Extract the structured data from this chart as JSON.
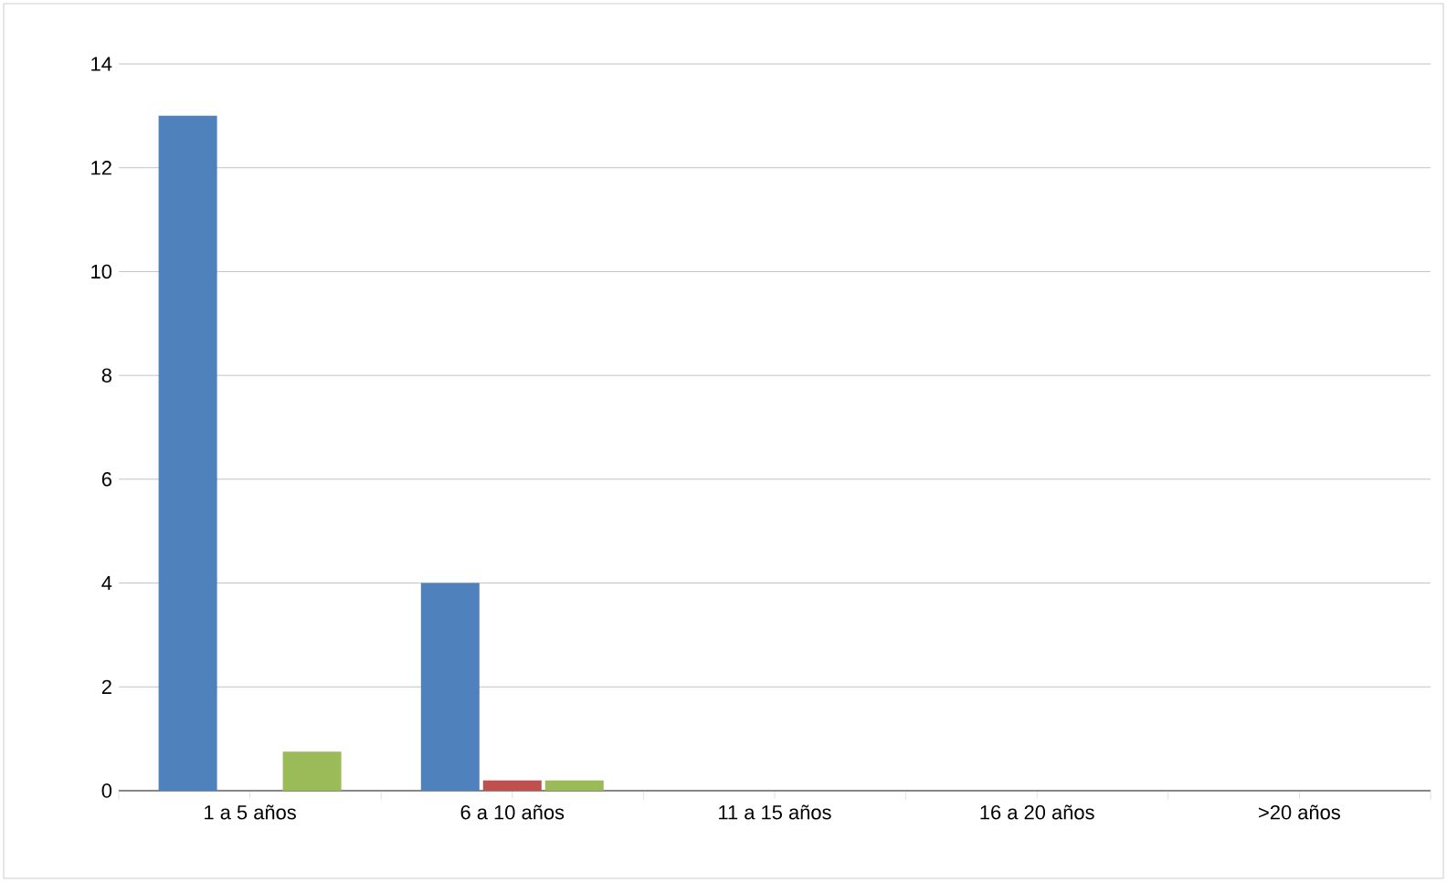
{
  "chart_data": {
    "type": "bar",
    "categories": [
      "1 a 5 años",
      "6 a 10 años",
      "11 a 15 años",
      "16 a 20 años",
      ">20 años"
    ],
    "series": [
      {
        "color": "#4f81bd",
        "values": [
          13,
          4,
          0,
          0,
          0
        ]
      },
      {
        "color": "#c0504d",
        "values": [
          0,
          0.2,
          0,
          0,
          0
        ]
      },
      {
        "color": "#9bbb59",
        "values": [
          0.75,
          0.2,
          0,
          0,
          0
        ]
      }
    ],
    "ylim": [
      0,
      14
    ],
    "yticks": [
      0,
      2,
      4,
      6,
      8,
      10,
      12,
      14
    ],
    "grid": "y"
  }
}
